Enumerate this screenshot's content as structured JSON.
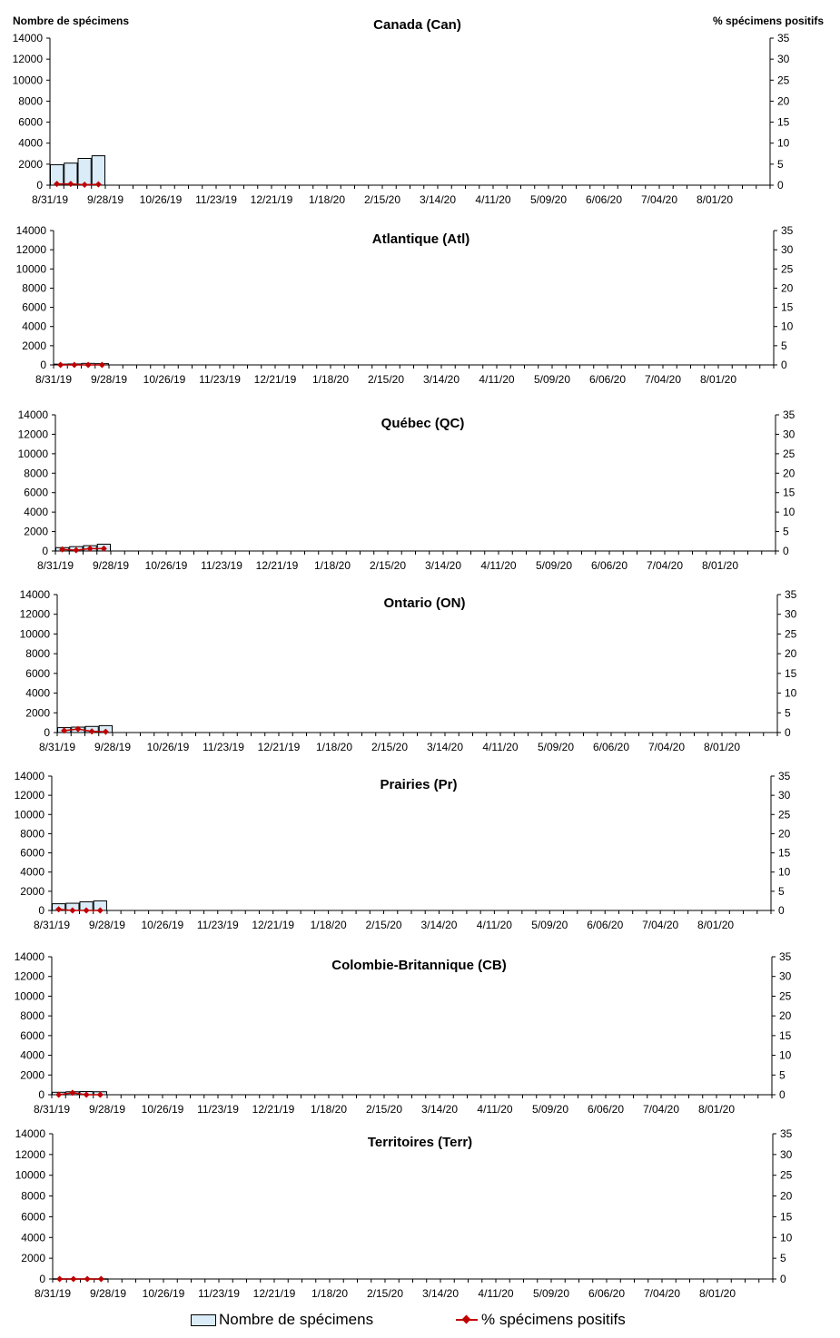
{
  "header": {
    "left_axis_title": "Nombre de spécimens",
    "right_axis_title": "% spécimens positifs"
  },
  "legend": {
    "bars_label": "Nombre de spécimens",
    "line_label": "% spécimens positifs"
  },
  "colors": {
    "bar_fill": "#d9ecf7",
    "bar_stroke": "#000000",
    "line": "#c00000",
    "marker": "#c00000"
  },
  "chart_data": [
    {
      "type": "bar",
      "title": "Canada (Can)",
      "ylim": [
        0,
        14000
      ],
      "y2lim": [
        0,
        35
      ],
      "yticks": [
        "0",
        "2000",
        "4000",
        "6000",
        "8000",
        "10000",
        "12000",
        "14000"
      ],
      "y2ticks": [
        "0",
        "5",
        "10",
        "15",
        "20",
        "25",
        "30",
        "35"
      ],
      "xtick_labels": [
        "8/31/19",
        "9/28/19",
        "10/26/19",
        "11/23/19",
        "12/21/19",
        "1/18/20",
        "2/15/20",
        "3/14/20",
        "4/11/20",
        "5/09/20",
        "6/06/20",
        "7/04/20",
        "8/01/20"
      ],
      "series": [
        {
          "name": "Nombre de spécimens",
          "kind": "bar",
          "values": [
            1950,
            2100,
            2550,
            2800
          ]
        },
        {
          "name": "% spécimens positifs",
          "kind": "line",
          "values": [
            0.3,
            0.3,
            0.1,
            0.2
          ]
        }
      ]
    },
    {
      "type": "bar",
      "title": "Atlantique (Atl)",
      "ylim": [
        0,
        14000
      ],
      "y2lim": [
        0,
        35
      ],
      "yticks": [
        "0",
        "2000",
        "4000",
        "6000",
        "8000",
        "10000",
        "12000",
        "14000"
      ],
      "y2ticks": [
        "0",
        "5",
        "10",
        "15",
        "20",
        "25",
        "30",
        "35"
      ],
      "xtick_labels": [
        "8/31/19",
        "9/28/19",
        "10/26/19",
        "11/23/19",
        "12/21/19",
        "1/18/20",
        "2/15/20",
        "3/14/20",
        "4/11/20",
        "5/09/20",
        "6/06/20",
        "7/04/20",
        "8/01/20"
      ],
      "series": [
        {
          "name": "Nombre de spécimens",
          "kind": "bar",
          "values": [
            80,
            100,
            160,
            130
          ]
        },
        {
          "name": "% spécimens positifs",
          "kind": "line",
          "values": [
            0,
            0,
            0,
            0
          ]
        }
      ]
    },
    {
      "type": "bar",
      "title": "Québec (QC)",
      "ylim": [
        0,
        14000
      ],
      "y2lim": [
        0,
        35
      ],
      "yticks": [
        "0",
        "2000",
        "4000",
        "6000",
        "8000",
        "10000",
        "12000",
        "14000"
      ],
      "y2ticks": [
        "0",
        "5",
        "10",
        "15",
        "20",
        "25",
        "30",
        "35"
      ],
      "xtick_labels": [
        "8/31/19",
        "9/28/19",
        "10/26/19",
        "11/23/19",
        "12/21/19",
        "1/18/20",
        "2/15/20",
        "3/14/20",
        "4/11/20",
        "5/09/20",
        "6/06/20",
        "7/04/20",
        "8/01/20"
      ],
      "series": [
        {
          "name": "Nombre de spécimens",
          "kind": "bar",
          "values": [
            350,
            450,
            550,
            700
          ]
        },
        {
          "name": "% spécimens positifs",
          "kind": "line",
          "values": [
            0.4,
            0.2,
            0.6,
            0.6
          ]
        }
      ]
    },
    {
      "type": "bar",
      "title": "Ontario (ON)",
      "ylim": [
        0,
        14000
      ],
      "y2lim": [
        0,
        35
      ],
      "yticks": [
        "0",
        "2000",
        "4000",
        "6000",
        "8000",
        "10000",
        "12000",
        "14000"
      ],
      "y2ticks": [
        "0",
        "5",
        "10",
        "15",
        "20",
        "25",
        "30",
        "35"
      ],
      "xtick_labels": [
        "8/31/19",
        "9/28/19",
        "10/26/19",
        "11/23/19",
        "12/21/19",
        "1/18/20",
        "2/15/20",
        "3/14/20",
        "4/11/20",
        "5/09/20",
        "6/06/20",
        "7/04/20",
        "8/01/20"
      ],
      "series": [
        {
          "name": "Nombre de spécimens",
          "kind": "bar",
          "values": [
            500,
            550,
            620,
            700
          ]
        },
        {
          "name": "% spécimens positifs",
          "kind": "line",
          "values": [
            0.5,
            0.9,
            0.3,
            0.2
          ]
        }
      ]
    },
    {
      "type": "bar",
      "title": "Prairies (Pr)",
      "ylim": [
        0,
        14000
      ],
      "y2lim": [
        0,
        35
      ],
      "yticks": [
        "0",
        "2000",
        "4000",
        "6000",
        "8000",
        "10000",
        "12000",
        "14000"
      ],
      "y2ticks": [
        "0",
        "5",
        "10",
        "15",
        "20",
        "25",
        "30",
        "35"
      ],
      "xtick_labels": [
        "8/31/19",
        "9/28/19",
        "10/26/19",
        "11/23/19",
        "12/21/19",
        "1/18/20",
        "2/15/20",
        "3/14/20",
        "4/11/20",
        "5/09/20",
        "6/06/20",
        "7/04/20",
        "8/01/20"
      ],
      "series": [
        {
          "name": "Nombre de spécimens",
          "kind": "bar",
          "values": [
            700,
            750,
            900,
            1000
          ]
        },
        {
          "name": "% spécimens positifs",
          "kind": "line",
          "values": [
            0.3,
            0,
            0,
            0
          ]
        }
      ]
    },
    {
      "type": "bar",
      "title": "Colombie-Britannique (CB)",
      "ylim": [
        0,
        14000
      ],
      "y2lim": [
        0,
        35
      ],
      "yticks": [
        "0",
        "2000",
        "4000",
        "6000",
        "8000",
        "10000",
        "12000",
        "14000"
      ],
      "y2ticks": [
        "0",
        "5",
        "10",
        "15",
        "20",
        "25",
        "30",
        "35"
      ],
      "xtick_labels": [
        "8/31/19",
        "9/28/19",
        "10/26/19",
        "11/23/19",
        "12/21/19",
        "1/18/20",
        "2/15/20",
        "3/14/20",
        "4/11/20",
        "5/09/20",
        "6/06/20",
        "7/04/20",
        "8/01/20"
      ],
      "series": [
        {
          "name": "Nombre de spécimens",
          "kind": "bar",
          "values": [
            250,
            300,
            320,
            300
          ]
        },
        {
          "name": "% spécimens positifs",
          "kind": "line",
          "values": [
            0,
            0.5,
            0,
            0
          ]
        }
      ]
    },
    {
      "type": "bar",
      "title": "Territoires (Terr)",
      "ylim": [
        0,
        14000
      ],
      "y2lim": [
        0,
        35
      ],
      "yticks": [
        "0",
        "2000",
        "4000",
        "6000",
        "8000",
        "10000",
        "12000",
        "14000"
      ],
      "y2ticks": [
        "0",
        "5",
        "10",
        "15",
        "20",
        "25",
        "30",
        "35"
      ],
      "xtick_labels": [
        "8/31/19",
        "9/28/19",
        "10/26/19",
        "11/23/19",
        "12/21/19",
        "1/18/20",
        "2/15/20",
        "3/14/20",
        "4/11/20",
        "5/09/20",
        "6/06/20",
        "7/04/20",
        "8/01/20"
      ],
      "series": [
        {
          "name": "Nombre de spécimens",
          "kind": "bar",
          "values": [
            20,
            20,
            20,
            20
          ]
        },
        {
          "name": "% spécimens positifs",
          "kind": "line",
          "values": [
            0,
            0,
            0,
            0
          ]
        }
      ]
    }
  ]
}
